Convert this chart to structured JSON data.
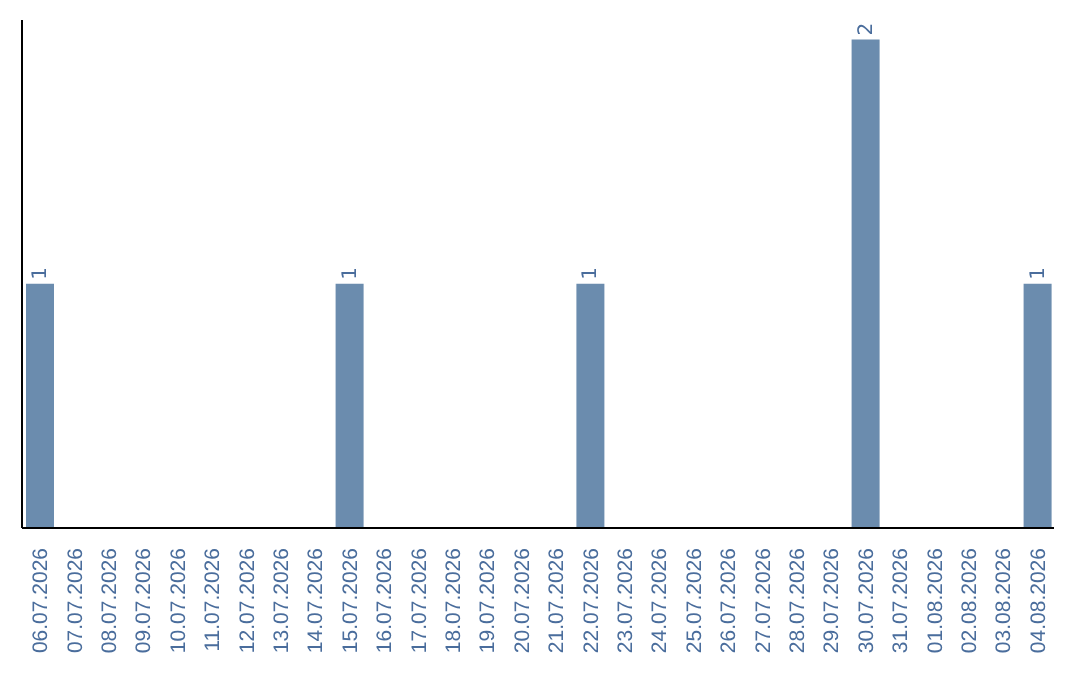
{
  "chart_data": {
    "type": "bar",
    "categories": [
      "06.07.2026",
      "07.07.2026",
      "08.07.2026",
      "09.07.2026",
      "10.07.2026",
      "11.07.2026",
      "12.07.2026",
      "13.07.2026",
      "14.07.2026",
      "15.07.2026",
      "16.07.2026",
      "17.07.2026",
      "18.07.2026",
      "19.07.2026",
      "20.07.2026",
      "21.07.2026",
      "22.07.2026",
      "23.07.2026",
      "24.07.2026",
      "25.07.2026",
      "26.07.2026",
      "27.07.2026",
      "28.07.2026",
      "29.07.2026",
      "30.07.2026",
      "31.07.2026",
      "01.08.2026",
      "02.08.2026",
      "03.08.2026",
      "04.08.2026"
    ],
    "values": [
      1,
      0,
      0,
      0,
      0,
      0,
      0,
      0,
      0,
      1,
      0,
      0,
      0,
      0,
      0,
      0,
      1,
      0,
      0,
      0,
      0,
      0,
      0,
      0,
      2,
      0,
      0,
      0,
      0,
      1
    ],
    "color": "#6b8cae",
    "value_labels": [
      "1",
      null,
      null,
      null,
      null,
      null,
      null,
      null,
      null,
      "1",
      null,
      null,
      null,
      null,
      null,
      null,
      "1",
      null,
      null,
      null,
      null,
      null,
      null,
      null,
      "2",
      null,
      null,
      null,
      null,
      "1"
    ],
    "grid": false,
    "legend": false
  }
}
